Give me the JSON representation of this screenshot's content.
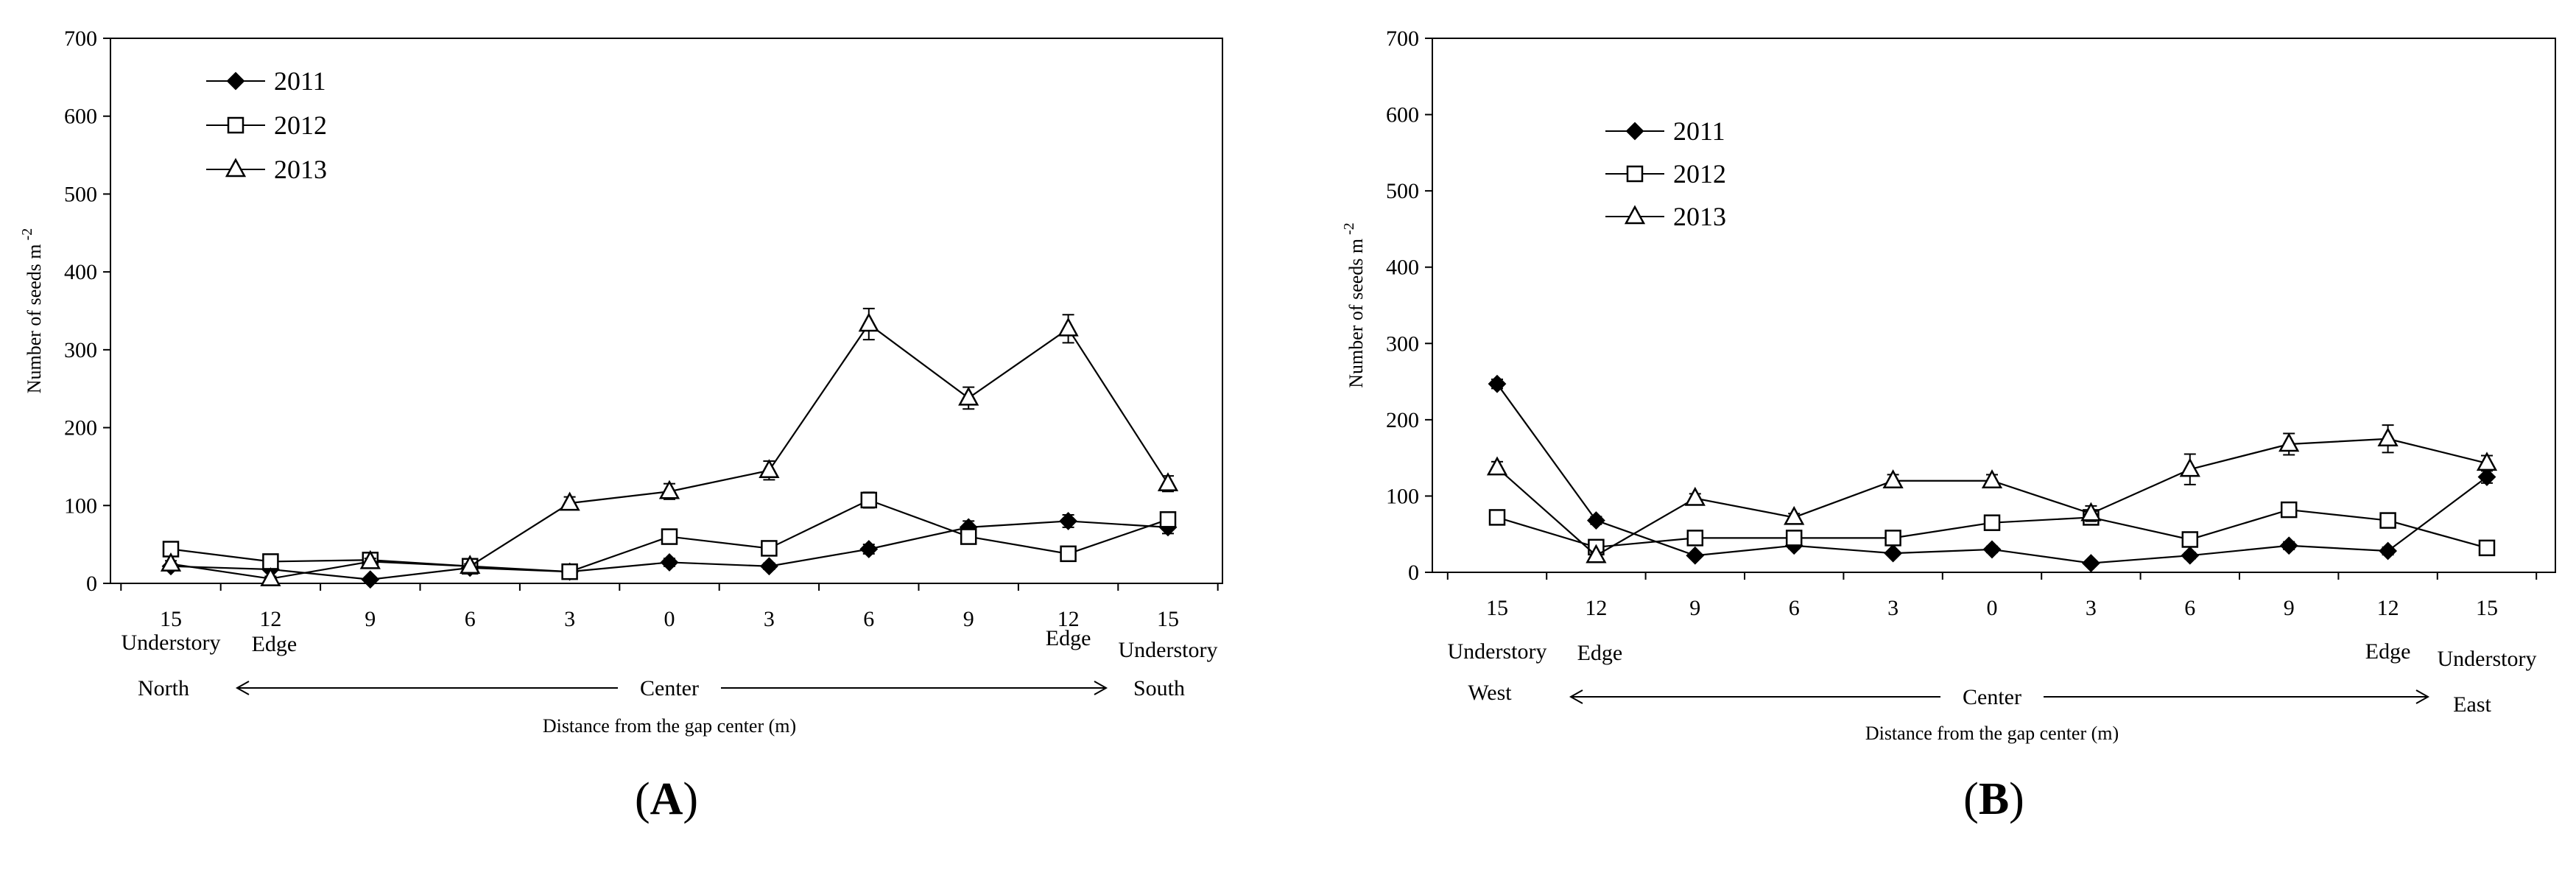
{
  "chart_data": [
    {
      "panel": "A",
      "type": "line",
      "ylabel": "Number of seeds m",
      "ylabel_sup": "-2",
      "xlabel": "Distance from the gap center (m)",
      "ylim": [
        0,
        700
      ],
      "yticks": [
        0,
        100,
        200,
        300,
        400,
        500,
        600,
        700
      ],
      "categories": [
        "15",
        "12",
        "9",
        "6",
        "3",
        "0",
        "3",
        "6",
        "9",
        "12",
        "15"
      ],
      "position_labels": [
        {
          "text": "Understory",
          "index": 0
        },
        {
          "text": "Edge",
          "index": 1
        },
        {
          "text": "Edge",
          "index": 9
        },
        {
          "text": "Understory",
          "index": 10
        }
      ],
      "direction_left": "North",
      "direction_right": "South",
      "center_label": "Center",
      "legend": [
        "2011",
        "2012",
        "2013"
      ],
      "series": [
        {
          "name": "2011",
          "marker": "diamond",
          "values": [
            22,
            18,
            5,
            20,
            15,
            27,
            22,
            44,
            72,
            80,
            72
          ],
          "err": [
            4,
            3,
            2,
            3,
            3,
            5,
            4,
            6,
            8,
            8,
            8
          ]
        },
        {
          "name": "2012",
          "marker": "square",
          "values": [
            44,
            28,
            30,
            22,
            15,
            60,
            45,
            107,
            60,
            38,
            82
          ],
          "err": [
            5,
            4,
            4,
            3,
            3,
            6,
            5,
            10,
            6,
            5,
            8
          ]
        },
        {
          "name": "2013",
          "marker": "triangle",
          "values": [
            25,
            6,
            28,
            22,
            103,
            118,
            145,
            333,
            238,
            327,
            128
          ],
          "err": [
            4,
            3,
            4,
            3,
            8,
            10,
            12,
            20,
            14,
            18,
            10
          ]
        }
      ]
    },
    {
      "panel": "B",
      "type": "line",
      "ylabel": "Number of seeds m",
      "ylabel_sup": "-2",
      "xlabel": "Distance from the gap center (m)",
      "ylim": [
        0,
        700
      ],
      "yticks": [
        0,
        100,
        200,
        300,
        400,
        500,
        600,
        700
      ],
      "categories": [
        "15",
        "12",
        "9",
        "6",
        "3",
        "0",
        "3",
        "6",
        "9",
        "12",
        "15"
      ],
      "position_labels": [
        {
          "text": "Understory",
          "index": 0
        },
        {
          "text": "Edge",
          "index": 1
        },
        {
          "text": "Edge",
          "index": 9
        },
        {
          "text": "Understory",
          "index": 10
        }
      ],
      "direction_left": "West",
      "direction_right": "East",
      "center_label": "Center",
      "legend": [
        "2011",
        "2012",
        "2013"
      ],
      "series": [
        {
          "name": "2011",
          "marker": "diamond",
          "values": [
            247,
            68,
            22,
            35,
            25,
            30,
            12,
            22,
            35,
            28,
            125
          ],
          "err": [
            6,
            5,
            3,
            4,
            3,
            4,
            3,
            4,
            5,
            5,
            8
          ]
        },
        {
          "name": "2012",
          "marker": "square",
          "values": [
            72,
            33,
            45,
            45,
            45,
            65,
            72,
            43,
            82,
            68,
            32
          ],
          "err": [
            5,
            4,
            4,
            4,
            4,
            5,
            6,
            5,
            6,
            6,
            5
          ]
        },
        {
          "name": "2013",
          "marker": "triangle",
          "values": [
            137,
            22,
            97,
            72,
            120,
            120,
            77,
            135,
            168,
            175,
            143
          ],
          "err": [
            8,
            4,
            6,
            5,
            8,
            8,
            10,
            20,
            14,
            18,
            10
          ]
        }
      ]
    }
  ],
  "panel_labels": [
    "A",
    "B"
  ]
}
